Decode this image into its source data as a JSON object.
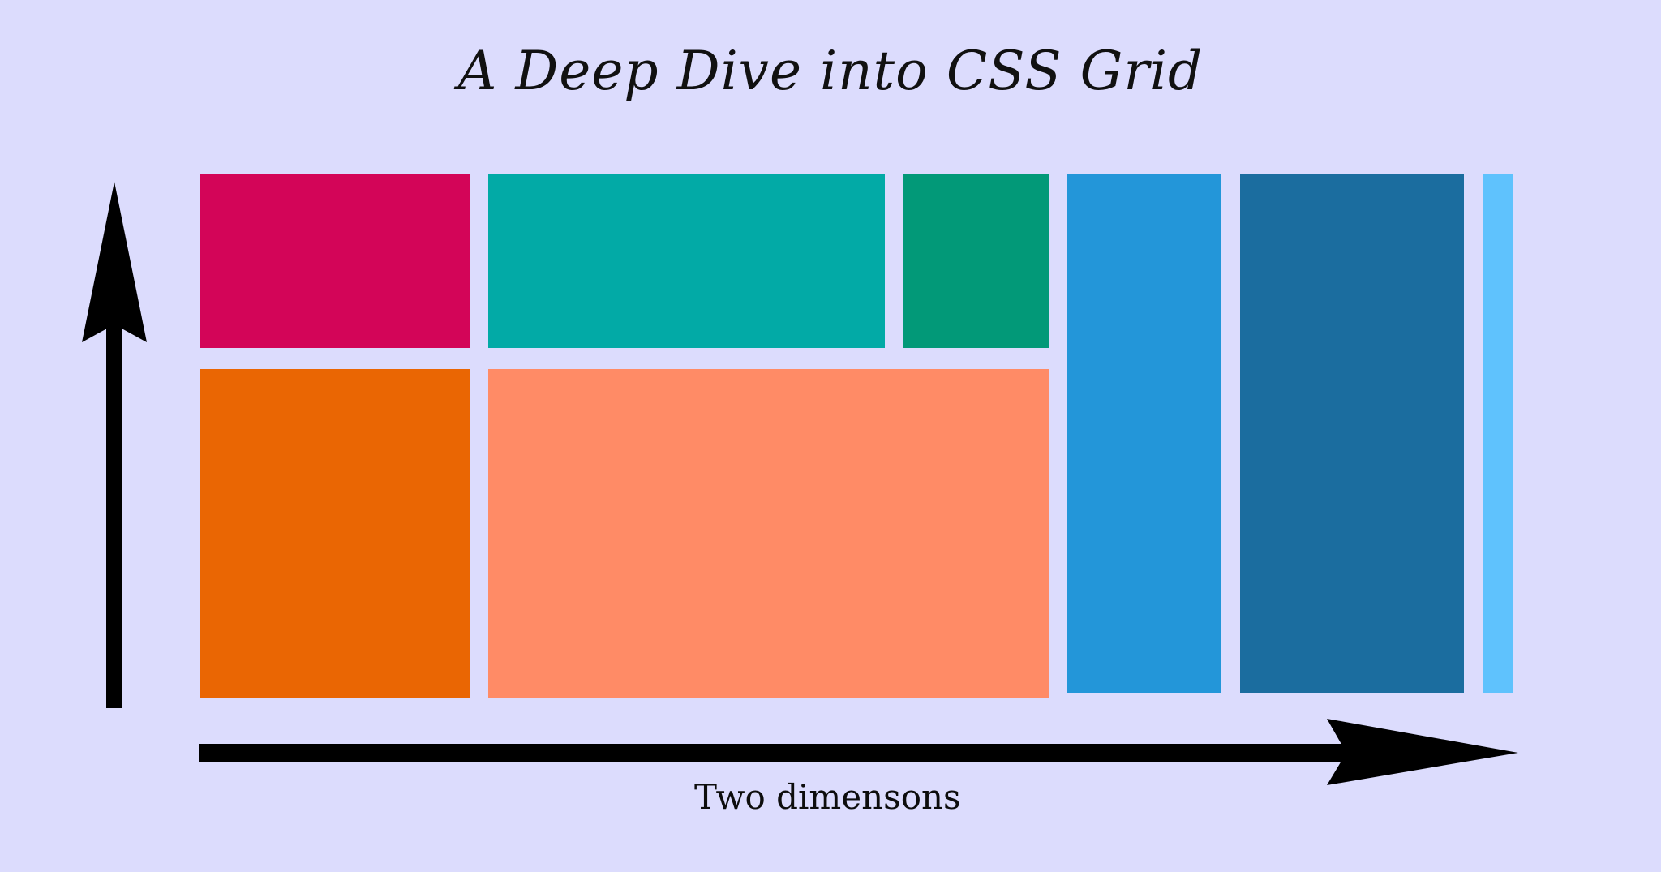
{
  "title": "A Deep Dive into CSS Grid",
  "axis_label": "Two dimensons",
  "colors": {
    "background": "#dcdcfd",
    "cell_1": "#d30558",
    "cell_2": "#02aaa6",
    "cell_3": "#029978",
    "cell_4": "#2396d9",
    "cell_5": "#1b6d9f",
    "cell_6": "#5fc2fd",
    "cell_7": "#ea6603",
    "cell_8": "#ff8b66",
    "arrow": "#000000"
  },
  "icons": {
    "vertical_arrow": "arrow-up-icon",
    "horizontal_arrow": "arrow-right-icon"
  }
}
